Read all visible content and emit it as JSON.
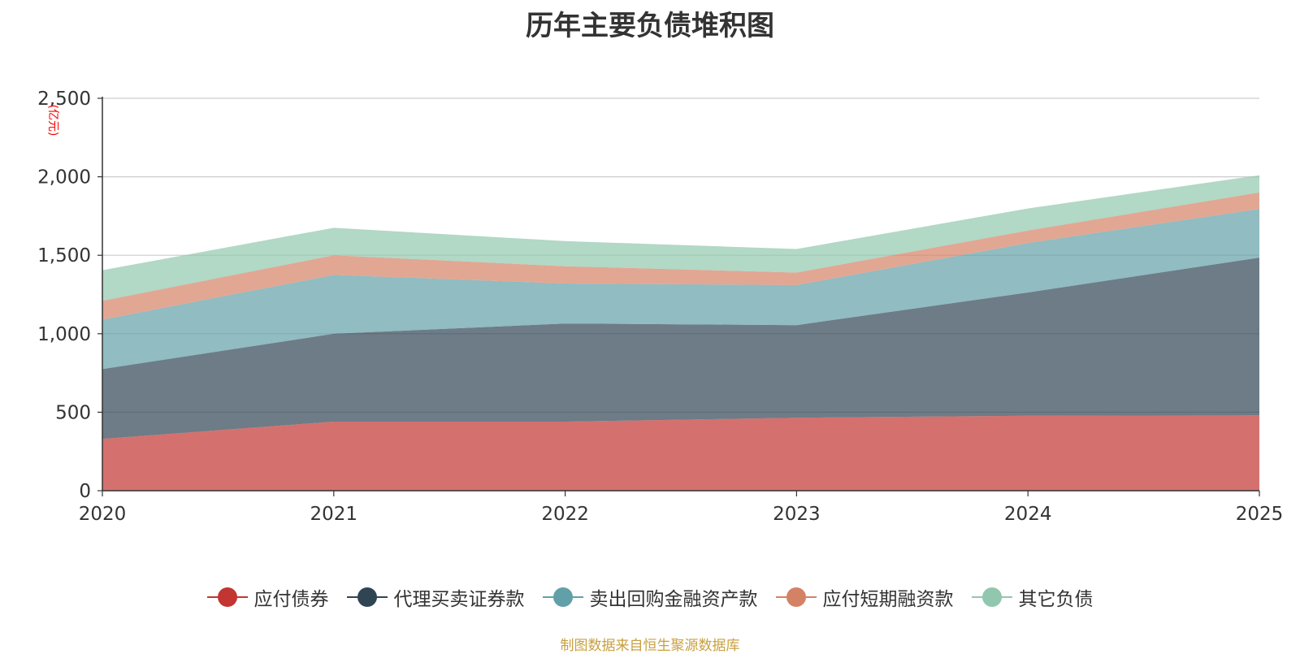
{
  "chart_data": {
    "type": "area",
    "stacked": true,
    "title": "历年主要负债堆积图",
    "unit_label": "(亿元)",
    "x": [
      "2020",
      "2021",
      "2022",
      "2023",
      "2024",
      "2025"
    ],
    "ylim": [
      0,
      2500
    ],
    "yticks": [
      "0",
      "500",
      "1,000",
      "1,500",
      "2,000",
      "2,500"
    ],
    "grid": true,
    "legend_position": "bottom",
    "series": [
      {
        "name": "应付债券",
        "color": "#c23531",
        "values": [
          330,
          440,
          440,
          465,
          478,
          480
        ]
      },
      {
        "name": "代理买卖证券款",
        "color": "#2f4554",
        "values": [
          445,
          560,
          625,
          590,
          785,
          1005
        ]
      },
      {
        "name": "卖出回购金融资产款",
        "color": "#61a0a8",
        "values": [
          315,
          375,
          255,
          255,
          315,
          310
        ]
      },
      {
        "name": "应付短期融资款",
        "color": "#d48265",
        "values": [
          120,
          125,
          110,
          80,
          80,
          105
        ]
      },
      {
        "name": "其它负债",
        "color": "#91c7ae",
        "values": [
          195,
          175,
          160,
          150,
          140,
          110
        ]
      }
    ]
  },
  "source": "制图数据来自恒生聚源数据库"
}
